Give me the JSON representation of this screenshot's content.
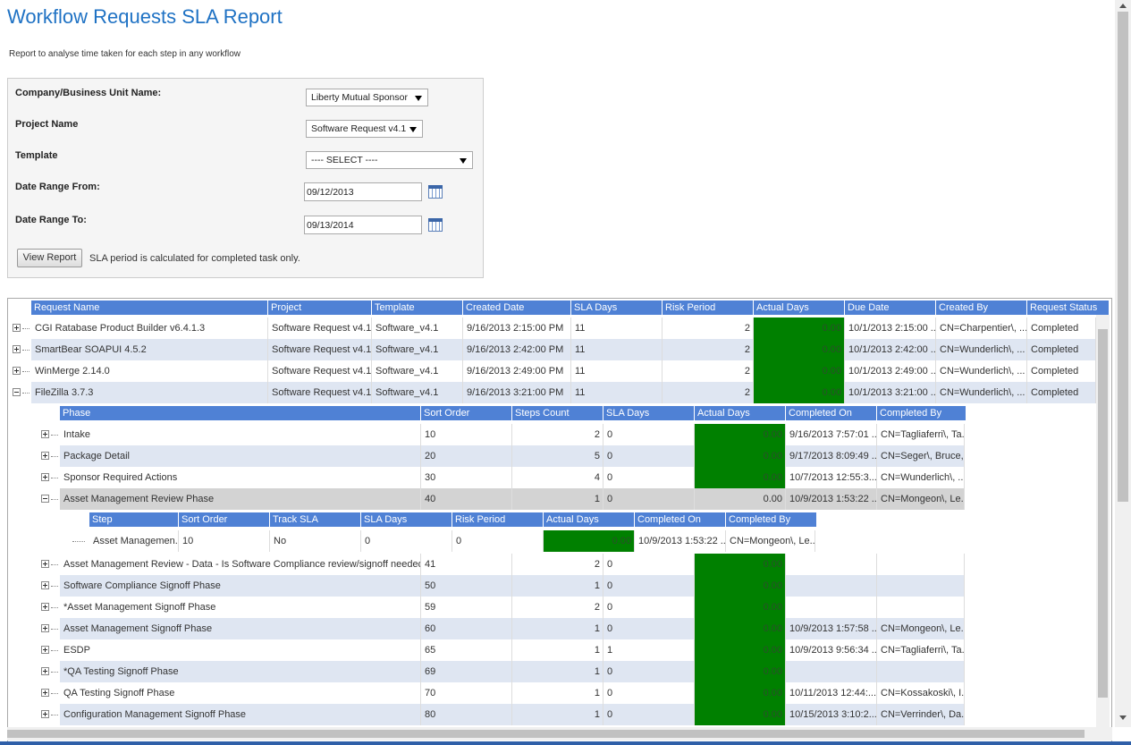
{
  "header": {
    "title": "Workflow Requests SLA Report",
    "subtitle": "Report to analyse time taken for each step in any workflow"
  },
  "filters": {
    "fields": [
      {
        "label": "Company/Business Unit Name:",
        "value": "Liberty Mutual Sponsor"
      },
      {
        "label": "Project Name",
        "value": "Software Request v4.1"
      },
      {
        "label": "Template",
        "value": "---- SELECT ----"
      },
      {
        "label": "Date Range From:",
        "value": "09/12/2013"
      },
      {
        "label": "Date Range To:",
        "value": "09/13/2014"
      }
    ],
    "button": "View Report",
    "note": "SLA period is calculated for completed task only."
  },
  "requests": {
    "columns": [
      "Request Name",
      "Project",
      "Template",
      "Created Date",
      "SLA Days",
      "Risk Period",
      "Actual Days",
      "Due Date",
      "Created By",
      "Request Status"
    ],
    "rows": [
      [
        "CGI Ratabase Product Builder v6.4.1.3",
        "Software Request v4.1",
        "Software_v4.1",
        "9/16/2013 2:15:00 PM",
        "11",
        "2",
        "0.00",
        "10/1/2013 2:15:00 ...",
        "CN=Charpentier\\, ...",
        "Completed"
      ],
      [
        "SmartBear SOAPUI 4.5.2",
        "Software Request v4.1",
        "Software_v4.1",
        "9/16/2013 2:42:00 PM",
        "11",
        "2",
        "0.00",
        "10/1/2013 2:42:00 ...",
        "CN=Wunderlich\\, ...",
        "Completed"
      ],
      [
        "WinMerge 2.14.0",
        "Software Request v4.1",
        "Software_v4.1",
        "9/16/2013 2:49:00 PM",
        "11",
        "2",
        "0.00",
        "10/1/2013 2:49:00 ...",
        "CN=Wunderlich\\, ...",
        "Completed"
      ],
      [
        "FileZilla 3.7.3",
        "Software Request v4.1",
        "Software_v4.1",
        "9/16/2013 3:21:00 PM",
        "11",
        "2",
        "0.00",
        "10/1/2013 3:21:00 ...",
        "CN=Wunderlich\\, ...",
        "Completed"
      ]
    ]
  },
  "phases": {
    "columns": [
      "Phase",
      "Sort Order",
      "Steps Count",
      "SLA Days",
      "Actual Days",
      "Completed On",
      "Completed By"
    ],
    "rows": [
      [
        "Intake",
        "10",
        "2",
        "0",
        "0.00",
        "9/16/2013 7:57:01 ...",
        "CN=Tagliaferri\\, Ta..."
      ],
      [
        "Package Detail",
        "20",
        "5",
        "0",
        "0.00",
        "9/17/2013 8:09:49 ...",
        "CN=Seger\\, Bruce,..."
      ],
      [
        "Sponsor Required Actions",
        "30",
        "4",
        "0",
        "0.00",
        "10/7/2013 12:55:3...",
        "CN=Wunderlich\\, ..."
      ],
      [
        "Asset Management Review Phase",
        "40",
        "1",
        "0",
        "0.00",
        "10/9/2013 1:53:22 ...",
        "CN=Mongeon\\, Le..."
      ],
      [
        "Asset Management Review - Data - Is Software Compliance review/signoff needed?",
        "41",
        "2",
        "0",
        "0.00",
        null,
        null
      ],
      [
        "Software Compliance Signoff Phase",
        "50",
        "1",
        "0",
        "0.00",
        null,
        null
      ],
      [
        "*Asset Management Signoff Phase",
        "59",
        "2",
        "0",
        "0.00",
        null,
        null
      ],
      [
        "Asset Management Signoff Phase",
        "60",
        "1",
        "0",
        "0.00",
        "10/9/2013 1:57:58 ...",
        "CN=Mongeon\\, Le..."
      ],
      [
        "ESDP",
        "65",
        "1",
        "1",
        "0.00",
        "10/9/2013 9:56:34 ...",
        "CN=Tagliaferri\\, Ta..."
      ],
      [
        "*QA Testing Signoff Phase",
        "69",
        "1",
        "0",
        "0.00",
        null,
        null
      ],
      [
        "QA Testing Signoff Phase",
        "70",
        "1",
        "0",
        "0.00",
        "10/11/2013 12:44:...",
        "CN=Kossakoski\\, I..."
      ],
      [
        "Configuration Management Signoff Phase",
        "80",
        "1",
        "0",
        "0.00",
        "10/15/2013 3:10:2...",
        "CN=Verrinder\\, Da..."
      ]
    ]
  },
  "steps": {
    "columns": [
      "Step",
      "Sort Order",
      "Track SLA",
      "SLA Days",
      "Risk Period",
      "Actual Days",
      "Completed On",
      "Completed By"
    ],
    "rows": [
      [
        "Asset Managemen...",
        "10",
        "No",
        "0",
        "0",
        "0.00",
        "10/9/2013 1:53:22 ...",
        "CN=Mongeon\\, Le..."
      ]
    ]
  }
}
